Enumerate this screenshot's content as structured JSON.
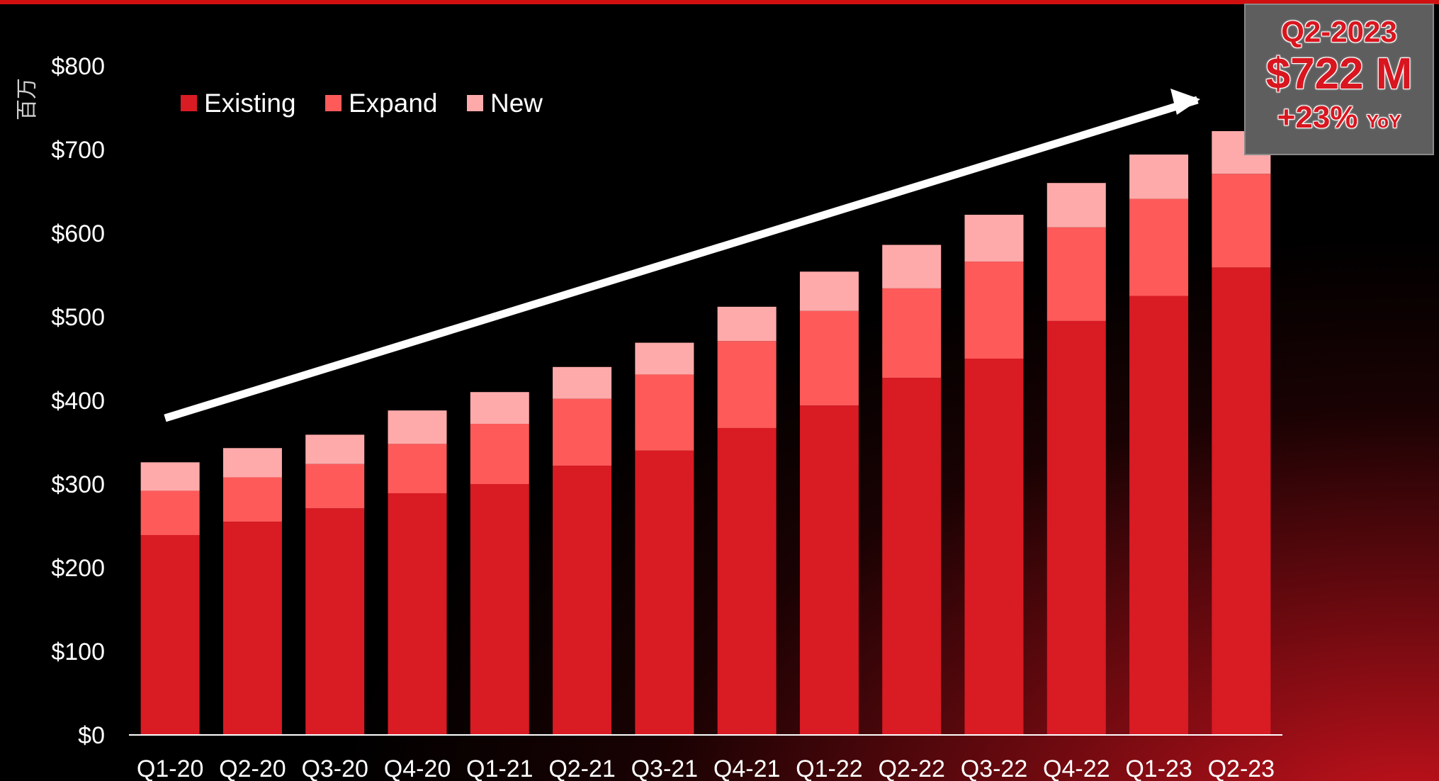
{
  "chart_data": {
    "type": "bar",
    "stacked": true,
    "categories": [
      "Q1-20",
      "Q2-20",
      "Q3-20",
      "Q4-20",
      "Q1-21",
      "Q2-21",
      "Q3-21",
      "Q4-21",
      "Q1-22",
      "Q2-22",
      "Q3-22",
      "Q4-22",
      "Q1-23",
      "Q2-23"
    ],
    "series": [
      {
        "name": "Existing",
        "color": "#d91b24",
        "values": [
          239,
          255,
          271,
          289,
          300,
          322,
          340,
          367,
          394,
          427,
          450,
          495,
          525,
          559
        ]
      },
      {
        "name": "Expand",
        "color": "#ff5a5a",
        "values": [
          53,
          53,
          53,
          59,
          72,
          80,
          91,
          104,
          113,
          107,
          116,
          112,
          116,
          112
        ]
      },
      {
        "name": "New",
        "color": "#ffaaaa",
        "values": [
          34,
          35,
          35,
          40,
          38,
          38,
          38,
          41,
          47,
          52,
          56,
          53,
          53,
          51
        ]
      }
    ],
    "ylabel": "百万",
    "ylim": [
      0,
      800
    ],
    "yticks": [
      "$0",
      "$100",
      "$200",
      "$300",
      "$400",
      "$500",
      "$600",
      "$700",
      "$800"
    ],
    "legend_position": "top-left",
    "grid": false,
    "annotations": {
      "trend_arrow": "up-right",
      "callout": {
        "period": "Q2-2023",
        "value": "$722 M",
        "growth": "+23%",
        "growth_suffix": "YoY"
      }
    }
  }
}
